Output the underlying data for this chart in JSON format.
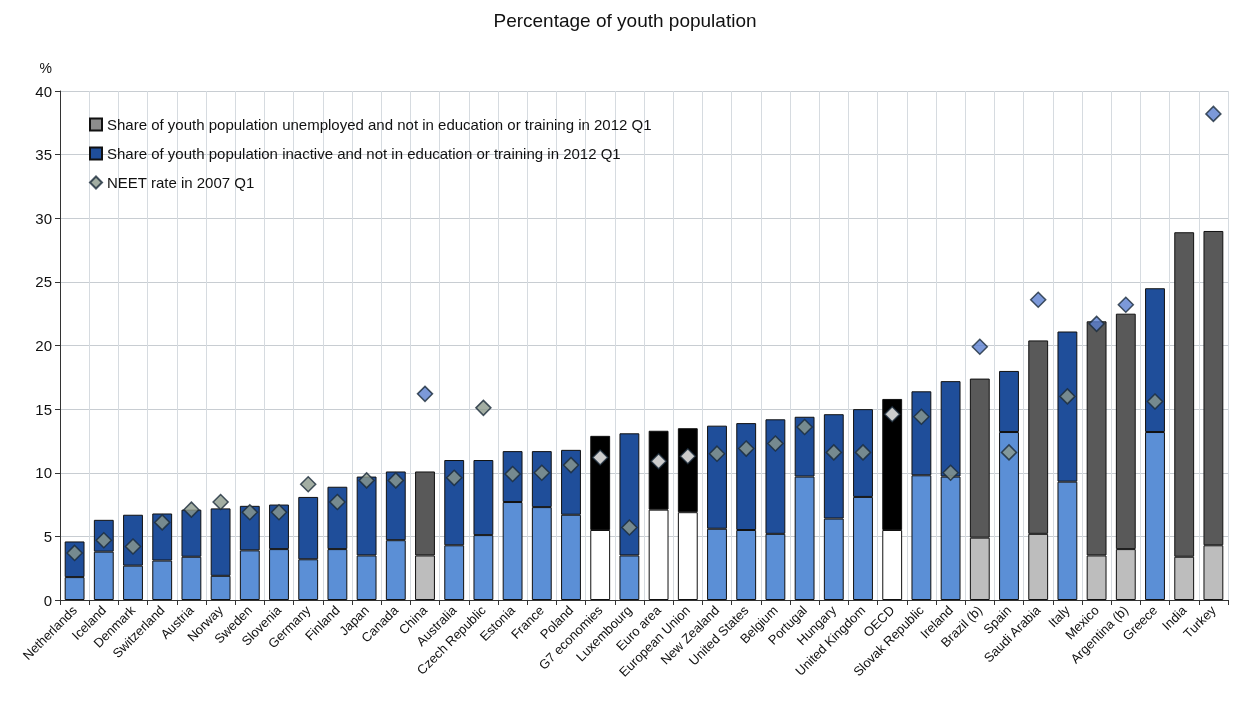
{
  "chart_data": {
    "type": "bar",
    "title": "Percentage of youth population",
    "ylabel": "%",
    "stacked": true,
    "grid": true,
    "legend": "top left",
    "categories": [
      "Netherlands",
      "Iceland",
      "Denmark",
      "Switzerland",
      "Austria",
      "Norway",
      "Sweden",
      "Slovenia",
      "Germany",
      "Finland",
      "Japan",
      "Canada",
      "China",
      "Australia",
      "Czech Republic",
      "Estonia",
      "France",
      "Poland",
      "G7 economies",
      "Luxembourg",
      "Euro area",
      "European Union",
      "New Zealand",
      "United States",
      "Belgium",
      "Portugal",
      "Hungary",
      "United Kingdom",
      "OECD",
      "Slovak Republic",
      "Ireland",
      "Brazil (b)",
      "Spain",
      "Saudi Arabia",
      "Italy",
      "Mexico",
      "Argentina (b)",
      "Greece",
      "India",
      "Turkey"
    ],
    "ylim": [
      0,
      40
    ],
    "yticks": [
      0,
      5,
      10,
      15,
      20,
      25,
      30,
      35,
      40
    ],
    "series": [
      {
        "name": "Share of youth population unemployed and not in education or training in 2012 Q1",
        "type": "bar",
        "color": "#8c8c8c",
        "values": [
          1.8,
          3.8,
          2.7,
          3.1,
          3.4,
          1.9,
          3.9,
          4.0,
          3.2,
          4.0,
          3.5,
          4.7,
          3.5,
          4.3,
          5.1,
          7.7,
          7.3,
          6.7,
          5.5,
          3.5,
          7.1,
          6.9,
          5.6,
          5.5,
          5.2,
          9.7,
          6.4,
          8.1,
          5.5,
          9.8,
          9.7,
          4.9,
          13.2,
          5.2,
          9.3,
          3.5,
          4.0,
          13.2,
          3.4,
          4.3
        ],
        "colors": [
          "#5b8fd6",
          "#5b8fd6",
          "#5b8fd6",
          "#5b8fd6",
          "#5b8fd6",
          "#5b8fd6",
          "#5b8fd6",
          "#5b8fd6",
          "#5b8fd6",
          "#5b8fd6",
          "#5b8fd6",
          "#5b8fd6",
          "#bdbdbd",
          "#5b8fd6",
          "#5b8fd6",
          "#5b8fd6",
          "#5b8fd6",
          "#5b8fd6",
          "#ffffff",
          "#5b8fd6",
          "#ffffff",
          "#ffffff",
          "#5b8fd6",
          "#5b8fd6",
          "#5b8fd6",
          "#5b8fd6",
          "#5b8fd6",
          "#5b8fd6",
          "#ffffff",
          "#5b8fd6",
          "#5b8fd6",
          "#bdbdbd",
          "#5b8fd6",
          "#bdbdbd",
          "#5b8fd6",
          "#bdbdbd",
          "#bdbdbd",
          "#5b8fd6",
          "#bdbdbd",
          "#bdbdbd"
        ]
      },
      {
        "name": "Share of youth population inactive and not in education or training in 2012 Q1",
        "type": "bar",
        "color": "#1f4e9a",
        "values": [
          2.8,
          2.5,
          4.0,
          3.7,
          3.7,
          5.3,
          3.5,
          3.5,
          4.9,
          4.9,
          6.2,
          5.4,
          6.6,
          6.7,
          5.9,
          4.0,
          4.4,
          5.1,
          7.4,
          9.6,
          6.2,
          6.6,
          8.1,
          8.4,
          9.0,
          4.7,
          8.2,
          6.9,
          10.3,
          6.6,
          7.5,
          12.5,
          4.8,
          15.2,
          11.8,
          18.4,
          18.5,
          11.3,
          25.5,
          24.7
        ],
        "colors": [
          "#1f4e9a",
          "#1f4e9a",
          "#1f4e9a",
          "#1f4e9a",
          "#1f4e9a",
          "#1f4e9a",
          "#1f4e9a",
          "#1f4e9a",
          "#1f4e9a",
          "#1f4e9a",
          "#1f4e9a",
          "#1f4e9a",
          "#595959",
          "#1f4e9a",
          "#1f4e9a",
          "#1f4e9a",
          "#1f4e9a",
          "#1f4e9a",
          "#000000",
          "#1f4e9a",
          "#000000",
          "#000000",
          "#1f4e9a",
          "#1f4e9a",
          "#1f4e9a",
          "#1f4e9a",
          "#1f4e9a",
          "#1f4e9a",
          "#000000",
          "#1f4e9a",
          "#1f4e9a",
          "#595959",
          "#1f4e9a",
          "#595959",
          "#1f4e9a",
          "#595959",
          "#595959",
          "#1f4e9a",
          "#595959",
          "#595959"
        ]
      },
      {
        "name": "NEET rate in 2007 Q1",
        "type": "scatter",
        "marker": "diamond",
        "color": "#8c9a8c",
        "values": [
          3.7,
          4.7,
          4.2,
          6.1,
          7.1,
          7.7,
          6.9,
          6.9,
          9.1,
          7.7,
          9.4,
          9.4,
          16.2,
          9.6,
          15.1,
          9.9,
          10.0,
          10.6,
          11.2,
          5.7,
          10.9,
          11.3,
          11.5,
          11.9,
          12.3,
          13.6,
          11.6,
          11.6,
          14.6,
          14.4,
          10.0,
          19.9,
          11.6,
          23.6,
          16.0,
          21.7,
          23.2,
          15.6,
          null,
          38.2
        ],
        "colors": [
          "#8c9a8c",
          "#8c9a8c",
          "#8c9a8c",
          "#8c9a8c",
          "#8c9a8c",
          "#8c9a8c",
          "#8c9a8c",
          "#8c9a8c",
          "#8c9a8c",
          "#8c9a8c",
          "#8c9a8c",
          "#8c9a8c",
          "#5b7fd0",
          "#8c9a8c",
          "#8c9a8c",
          "#8c9a8c",
          "#8c9a8c",
          "#8c9a8c",
          "#ffffff",
          "#8c9a8c",
          "#ffffff",
          "#ffffff",
          "#8c9a8c",
          "#8c9a8c",
          "#8c9a8c",
          "#8c9a8c",
          "#8c9a8c",
          "#8c9a8c",
          "#ffffff",
          "#8c9a8c",
          "#8c9a8c",
          "#5b7fd0",
          "#8c9a8c",
          "#5b7fd0",
          "#8c9a8c",
          "#5b7fd0",
          "#5b7fd0",
          "#8c9a8c",
          "#5b7fd0",
          "#5b7fd0"
        ]
      }
    ]
  }
}
